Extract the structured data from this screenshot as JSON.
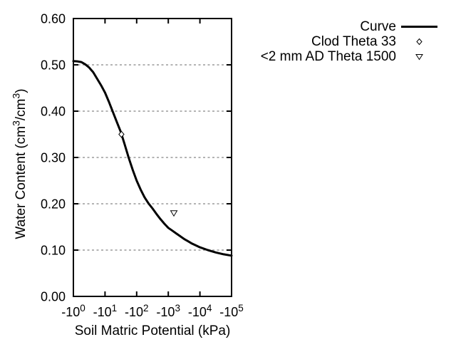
{
  "figure": {
    "background": "#ffffff",
    "text_color": "#000000",
    "grid_color": "#9a9a9a",
    "curve_color": "#000000"
  },
  "legend": {
    "position": "top-right, outside plot area",
    "items": [
      {
        "label": "Curve",
        "marker": "line"
      },
      {
        "label": "Clod Theta 33",
        "marker": "diamond"
      },
      {
        "label": "<2 mm AD Theta 1500",
        "marker": "triangle-down"
      }
    ]
  },
  "chart_data": {
    "type": "line",
    "title": "",
    "xlabel": "Soil Matric Potential (kPa)",
    "ylabel": "Water Content (cm³/cm³)",
    "ylabel_parts": [
      {
        "t": "Water Content (cm"
      },
      {
        "sup": "3"
      },
      {
        "t": "/cm"
      },
      {
        "sup": "3"
      },
      {
        "t": ")"
      }
    ],
    "x_axis": {
      "scale": "negative log10",
      "decades": [
        0,
        5
      ],
      "ticks": [
        {
          "L": 0,
          "base": "-10",
          "sup": "0"
        },
        {
          "L": 1,
          "base": "-10",
          "sup": "1"
        },
        {
          "L": 2,
          "base": "-10",
          "sup": "2"
        },
        {
          "L": 3,
          "base": "-10",
          "sup": "3"
        },
        {
          "L": 4,
          "base": "-10",
          "sup": "4"
        },
        {
          "L": 5,
          "base": "-10",
          "sup": "5"
        }
      ]
    },
    "y_axis": {
      "ylim": [
        0,
        0.6
      ],
      "ticks": [
        {
          "value": 0.0,
          "label": "0.00"
        },
        {
          "value": 0.1,
          "label": "0.10"
        },
        {
          "value": 0.2,
          "label": "0.20"
        },
        {
          "value": 0.3,
          "label": "0.30"
        },
        {
          "value": 0.4,
          "label": "0.40"
        },
        {
          "value": 0.5,
          "label": "0.50"
        },
        {
          "value": 0.6,
          "label": "0.60"
        }
      ],
      "grid": "horizontal dashed gray lines at 0.10 through 0.50"
    },
    "series": [
      {
        "name": "Curve",
        "type": "line",
        "x_unit": "log10(|kPa|)",
        "points": [
          [
            0.0,
            0.508
          ],
          [
            0.125,
            0.5075
          ],
          [
            0.25,
            0.506
          ],
          [
            0.375,
            0.501
          ],
          [
            0.5,
            0.494
          ],
          [
            0.625,
            0.484
          ],
          [
            0.75,
            0.47
          ],
          [
            0.875,
            0.456
          ],
          [
            1.0,
            0.44
          ],
          [
            1.125,
            0.42
          ],
          [
            1.25,
            0.398
          ],
          [
            1.375,
            0.376
          ],
          [
            1.5,
            0.355
          ],
          [
            1.625,
            0.327
          ],
          [
            1.75,
            0.299
          ],
          [
            1.875,
            0.273
          ],
          [
            2.0,
            0.25
          ],
          [
            2.125,
            0.231
          ],
          [
            2.25,
            0.214
          ],
          [
            2.375,
            0.201
          ],
          [
            2.5,
            0.19
          ],
          [
            2.625,
            0.178
          ],
          [
            2.75,
            0.167
          ],
          [
            2.875,
            0.157
          ],
          [
            3.0,
            0.148
          ],
          [
            3.125,
            0.142
          ],
          [
            3.25,
            0.136
          ],
          [
            3.375,
            0.13
          ],
          [
            3.5,
            0.124
          ],
          [
            3.625,
            0.119
          ],
          [
            3.75,
            0.114
          ],
          [
            3.875,
            0.11
          ],
          [
            4.0,
            0.106
          ],
          [
            4.25,
            0.1
          ],
          [
            4.5,
            0.095
          ],
          [
            4.75,
            0.091
          ],
          [
            5.0,
            0.088
          ]
        ]
      },
      {
        "name": "Clod Theta 33",
        "type": "scatter",
        "marker": "diamond",
        "points_kpa": [
          [
            -33,
            0.35
          ]
        ]
      },
      {
        "name": "<2 mm AD Theta 1500",
        "type": "scatter",
        "marker": "triangle-down",
        "points_kpa": [
          [
            -1500,
            0.18
          ]
        ]
      }
    ]
  }
}
